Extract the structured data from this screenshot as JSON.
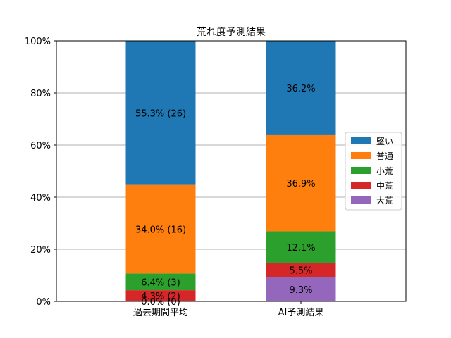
{
  "chart_data": {
    "type": "bar",
    "stacked": true,
    "title": "荒れ度予測結果",
    "categories": [
      "過去期間平均",
      "AI予測結果"
    ],
    "ylim": [
      0,
      100
    ],
    "y_ticks": [
      "0%",
      "20%",
      "40%",
      "60%",
      "80%",
      "100%"
    ],
    "grid": "y",
    "legend_position": "right",
    "series": [
      {
        "name": "大荒",
        "color": "#9467bd",
        "values": [
          0.0,
          9.3
        ],
        "labels": [
          "0.0% (0)",
          "9.3%"
        ]
      },
      {
        "name": "中荒",
        "color": "#d62728",
        "values": [
          4.3,
          5.5
        ],
        "labels": [
          "4.3% (2)",
          "5.5%"
        ]
      },
      {
        "name": "小荒",
        "color": "#2ca02c",
        "values": [
          6.4,
          12.1
        ],
        "labels": [
          "6.4% (3)",
          "12.1%"
        ]
      },
      {
        "name": "普通",
        "color": "#ff7f0e",
        "values": [
          34.0,
          36.9
        ],
        "labels": [
          "34.0% (16)",
          "36.9%"
        ]
      },
      {
        "name": "堅い",
        "color": "#1f77b4",
        "values": [
          55.3,
          36.2
        ],
        "labels": [
          "55.3% (26)",
          "36.2%"
        ]
      }
    ],
    "legend_order": [
      "堅い",
      "普通",
      "小荒",
      "中荒",
      "大荒"
    ]
  }
}
